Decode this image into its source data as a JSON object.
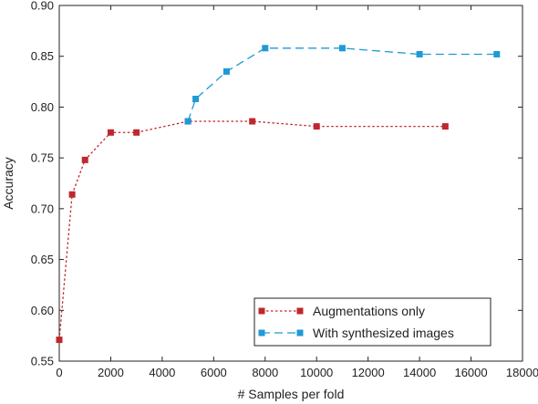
{
  "chart_data": {
    "type": "line",
    "title": "",
    "xlabel": "# Samples per fold",
    "ylabel": "Accuracy",
    "xlim": [
      0,
      18000
    ],
    "ylim": [
      0.55,
      0.9
    ],
    "x_ticks": [
      0,
      2000,
      4000,
      6000,
      8000,
      10000,
      12000,
      14000,
      16000,
      18000
    ],
    "y_ticks": [
      0.55,
      0.6,
      0.65,
      0.7,
      0.75,
      0.8,
      0.85,
      0.9
    ],
    "x_tick_labels": [
      "0",
      "2000",
      "4000",
      "6000",
      "8000",
      "10000",
      "12000",
      "14000",
      "16000",
      "18000"
    ],
    "y_tick_labels": [
      "0.55",
      "0.60",
      "0.65",
      "0.70",
      "0.75",
      "0.80",
      "0.85",
      "0.90"
    ],
    "grid": false,
    "legend_position": "bottom-right",
    "series": [
      {
        "name": "Augmentations only",
        "color": "#c0272d",
        "line_style": "dotted",
        "x": [
          0,
          500,
          1000,
          2000,
          3000,
          5000,
          7500,
          10000,
          15000
        ],
        "y": [
          0.571,
          0.714,
          0.748,
          0.775,
          0.775,
          0.786,
          0.786,
          0.781,
          0.781
        ]
      },
      {
        "name": "With synthesized images",
        "color": "#1e9ad6",
        "line_style": "dashed",
        "x": [
          5000,
          5300,
          6500,
          8000,
          11000,
          14000,
          17000
        ],
        "y": [
          0.786,
          0.808,
          0.835,
          0.858,
          0.858,
          0.852,
          0.852
        ]
      }
    ]
  }
}
